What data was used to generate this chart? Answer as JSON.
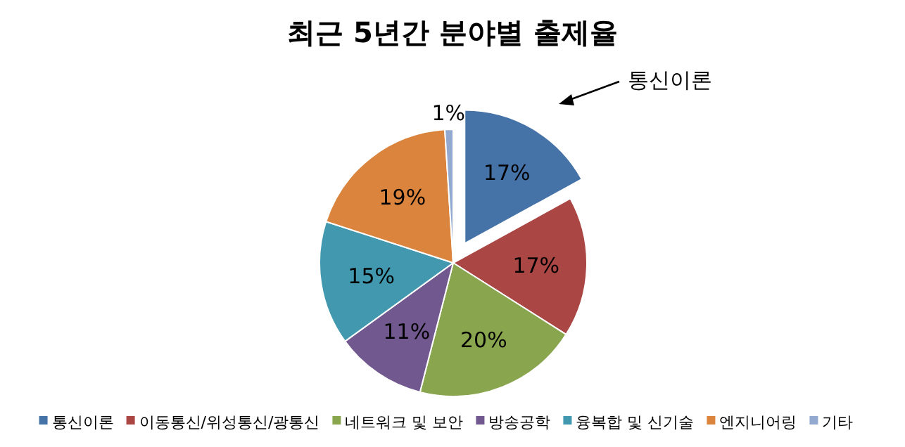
{
  "chart_data": {
    "type": "pie",
    "title": "최근 5년간 분야별 출제율",
    "categories": [
      "통신이론",
      "이동통신/위성통신/광통신",
      "네트워크 및 보안",
      "방송공학",
      "융복합 및 신기술",
      "엔지니어링",
      "기타"
    ],
    "values": [
      17,
      17,
      20,
      11,
      15,
      19,
      1
    ],
    "value_labels": [
      "17%",
      "17%",
      "20%",
      "11%",
      "15%",
      "19%",
      "1%"
    ],
    "colors": [
      "#4572a7",
      "#aa4643",
      "#89a54e",
      "#71588f",
      "#4198af",
      "#db843d",
      "#93a9cf"
    ],
    "annotations": [
      "통신이론"
    ],
    "legend": "bottom"
  }
}
